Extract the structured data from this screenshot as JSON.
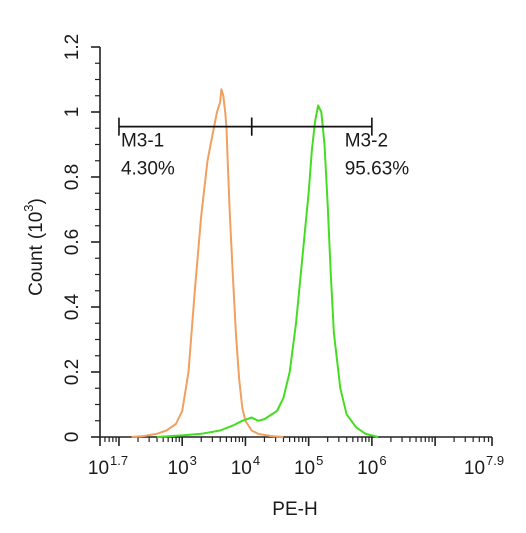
{
  "chart_data": {
    "type": "line",
    "xlabel": "PE-H",
    "ylabel": "Count",
    "ylabel_unit": "(10",
    "ylabel_unit_exp": "3",
    "ylabel_unit_close": ")",
    "x_scale": "log10",
    "xlim": [
      1.7,
      7.9
    ],
    "ylim": [
      0,
      1.2
    ],
    "grid": false,
    "y_ticks": [
      "0",
      "0.2",
      "0.4",
      "0.6",
      "0.8",
      "1",
      "1.2"
    ],
    "y_tick_values": [
      0,
      0.2,
      0.4,
      0.6,
      0.8,
      1.0,
      1.2
    ],
    "x_ticks": [
      {
        "base": "10",
        "exp": "1.7",
        "value": 1.7
      },
      {
        "base": "10",
        "exp": "3",
        "value": 3
      },
      {
        "base": "10",
        "exp": "4",
        "value": 4
      },
      {
        "base": "10",
        "exp": "5",
        "value": 5
      },
      {
        "base": "10",
        "exp": "6",
        "value": 6
      },
      {
        "base": "10",
        "exp": "7.9",
        "value": 7.9
      }
    ],
    "series": [
      {
        "color": "#f0a060",
        "x": [
          2.2,
          2.4,
          2.6,
          2.75,
          2.9,
          3.0,
          3.1,
          3.2,
          3.3,
          3.4,
          3.45,
          3.5,
          3.55,
          3.6,
          3.62,
          3.65,
          3.68,
          3.7,
          3.72,
          3.75,
          3.8,
          3.85,
          3.9,
          3.95,
          4.0,
          4.1,
          4.2,
          4.4,
          4.6
        ],
        "y": [
          0,
          0.003,
          0.01,
          0.02,
          0.04,
          0.08,
          0.2,
          0.45,
          0.68,
          0.85,
          0.9,
          0.95,
          1.0,
          1.03,
          1.07,
          1.05,
          1.0,
          0.95,
          0.85,
          0.7,
          0.5,
          0.32,
          0.18,
          0.09,
          0.05,
          0.02,
          0.01,
          0.003,
          0
        ]
      },
      {
        "color": "#44dd22",
        "x": [
          2.6,
          3.0,
          3.3,
          3.6,
          3.8,
          3.95,
          4.1,
          4.2,
          4.3,
          4.5,
          4.6,
          4.7,
          4.8,
          4.9,
          5.0,
          5.05,
          5.1,
          5.15,
          5.2,
          5.25,
          5.3,
          5.35,
          5.4,
          5.5,
          5.6,
          5.75,
          5.9,
          6.1
        ],
        "y": [
          0,
          0.005,
          0.01,
          0.02,
          0.035,
          0.05,
          0.06,
          0.05,
          0.055,
          0.08,
          0.12,
          0.2,
          0.35,
          0.55,
          0.75,
          0.88,
          0.97,
          1.02,
          1.0,
          0.9,
          0.72,
          0.5,
          0.32,
          0.15,
          0.07,
          0.03,
          0.01,
          0
        ]
      }
    ],
    "gates": [
      {
        "name": "M3-1",
        "percent": "4.30%",
        "x_start": 2.0,
        "x_end": 4.1,
        "y": 0.955
      },
      {
        "name": "M3-2",
        "percent": "95.63%",
        "x_start": 4.1,
        "x_end": 6.0,
        "y": 0.955
      }
    ]
  }
}
